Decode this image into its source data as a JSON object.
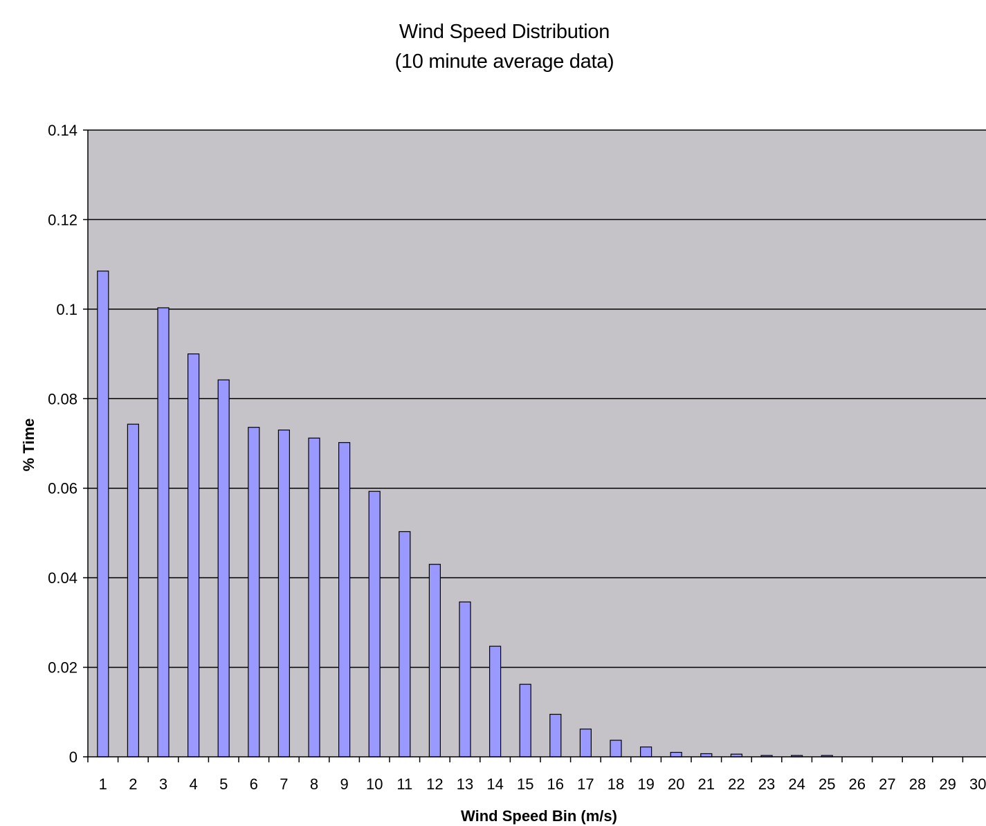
{
  "chart_data": {
    "type": "bar",
    "title": "Wind Speed Distribution",
    "subtitle": "(10 minute average data)",
    "xlabel": "Wind Speed Bin (m/s)",
    "ylabel": "% Time",
    "categories": [
      "1",
      "2",
      "3",
      "4",
      "5",
      "6",
      "7",
      "8",
      "9",
      "10",
      "11",
      "12",
      "13",
      "14",
      "15",
      "16",
      "17",
      "18",
      "19",
      "20",
      "21",
      "22",
      "23",
      "24",
      "25",
      "26",
      "27",
      "28",
      "29",
      "30"
    ],
    "values": [
      0.1085,
      0.0743,
      0.1003,
      0.09,
      0.0842,
      0.0736,
      0.073,
      0.0712,
      0.0702,
      0.0593,
      0.0503,
      0.043,
      0.0346,
      0.0247,
      0.0162,
      0.0095,
      0.0062,
      0.0037,
      0.0022,
      0.001,
      0.0007,
      0.0006,
      0.0003,
      0.0003,
      0.0003,
      0,
      0,
      0,
      0,
      0
    ],
    "ylim": [
      0,
      0.14
    ],
    "yticks": [
      "0",
      "0.02",
      "0.04",
      "0.06",
      "0.08",
      "0.1",
      "0.12",
      "0.14"
    ],
    "grid": true,
    "legend": "none",
    "colors": {
      "bar_fill": "#9999ff",
      "bar_stroke": "#000000",
      "plot_background": "#c5c3c8",
      "gridline": "#000000"
    }
  }
}
